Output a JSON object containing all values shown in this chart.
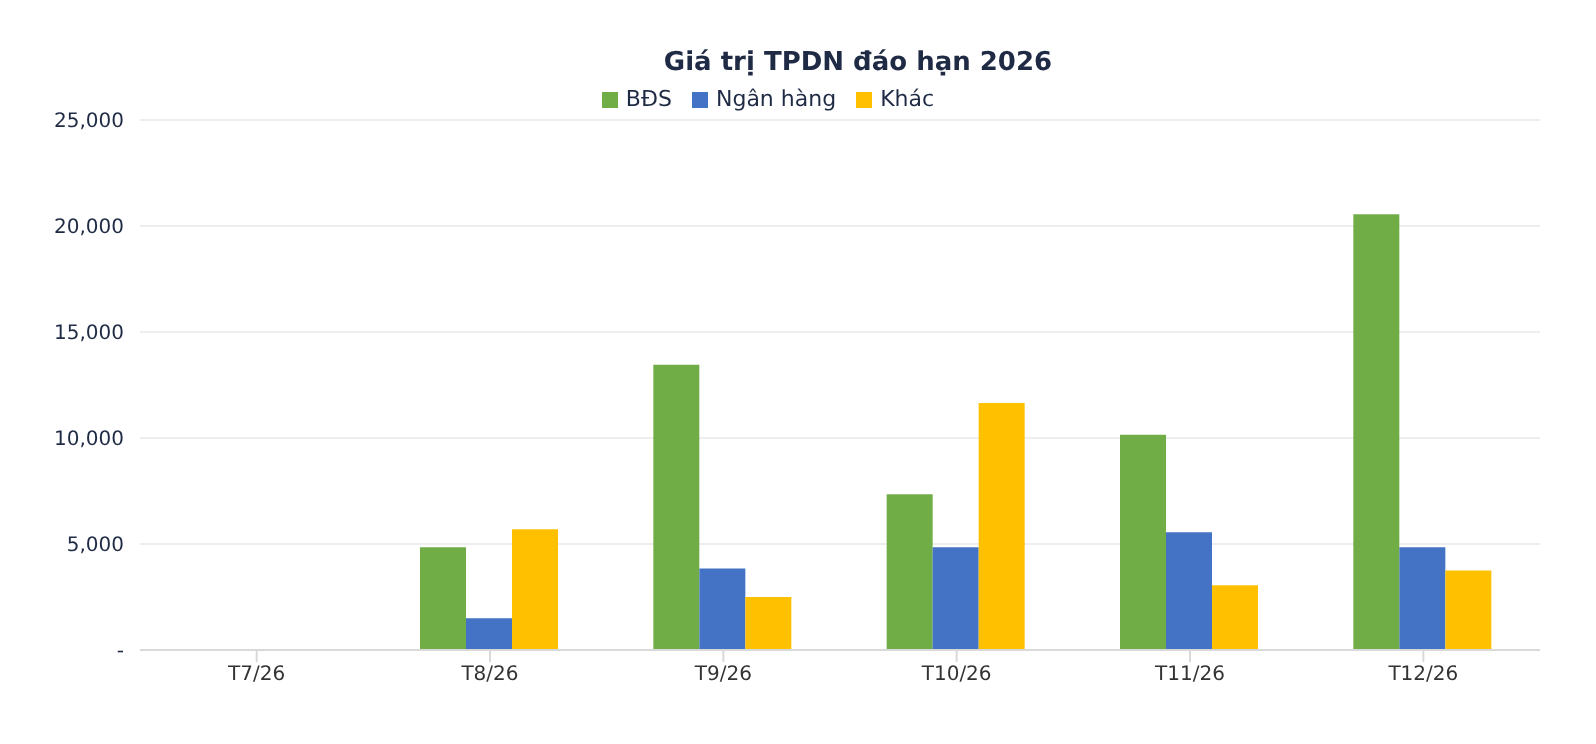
{
  "chart_data": {
    "type": "bar",
    "title": "Giá trị TPDN đáo hạn 2026",
    "categories": [
      "T7/26",
      "T8/26",
      "T9/26",
      "T10/26",
      "T11/26",
      "T12/26"
    ],
    "series": [
      {
        "name": "BĐS",
        "color": "#70ad47",
        "values": [
          0,
          4850,
          13450,
          7350,
          10150,
          20550
        ]
      },
      {
        "name": "Ngân hàng",
        "color": "#4472c4",
        "values": [
          0,
          1500,
          3850,
          4850,
          5550,
          4850
        ]
      },
      {
        "name": "Khác",
        "color": "#ffc000",
        "values": [
          0,
          5700,
          2500,
          11650,
          3050,
          3750
        ]
      }
    ],
    "ylim": [
      0,
      25000
    ],
    "yticks": [
      {
        "value": 0,
        "label": "-"
      },
      {
        "value": 5000,
        "label": "5,000"
      },
      {
        "value": 10000,
        "label": "10,000"
      },
      {
        "value": 15000,
        "label": "15,000"
      },
      {
        "value": 20000,
        "label": "20,000"
      },
      {
        "value": 25000,
        "label": "25,000"
      }
    ],
    "grid": "y",
    "legend": "top"
  }
}
